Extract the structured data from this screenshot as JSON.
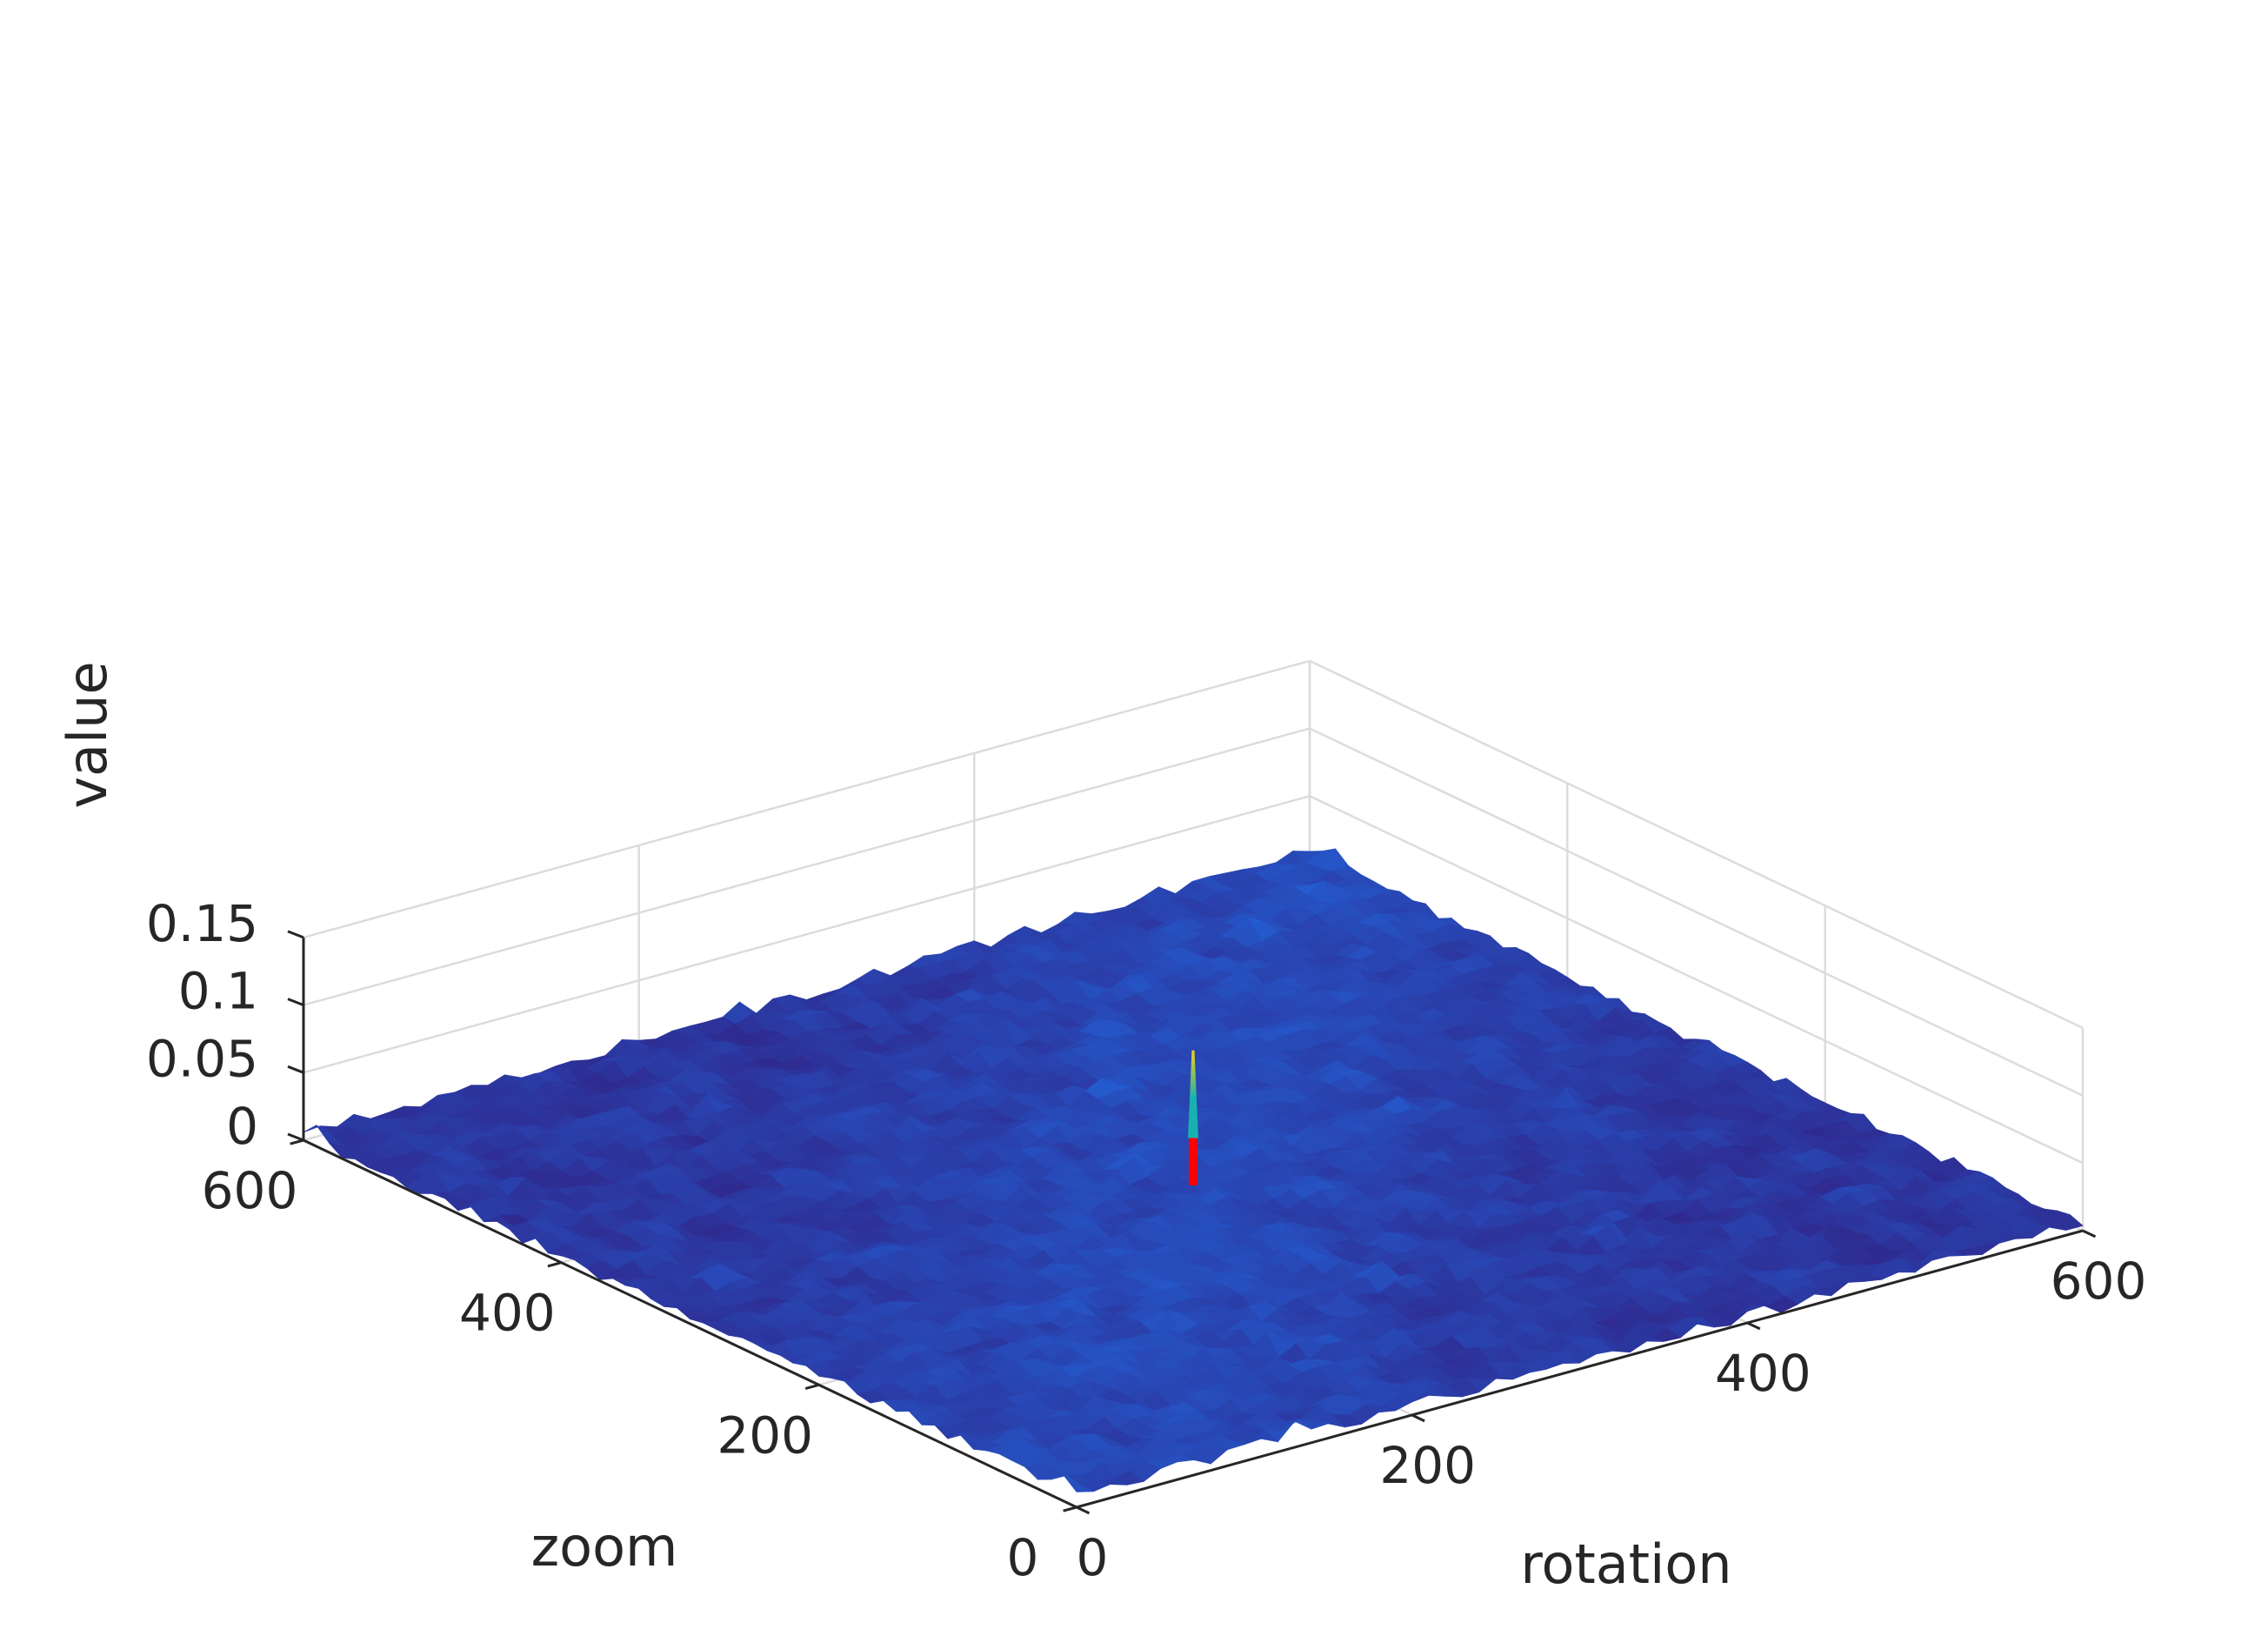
{
  "chart_data": {
    "type": "surface",
    "title": "",
    "xlabel": "rotation",
    "ylabel": "zoom",
    "zlabel": "value",
    "xlim": [
      0,
      600
    ],
    "ylim": [
      0,
      600
    ],
    "zlim": [
      0,
      0.15
    ],
    "x_ticks": [
      "0",
      "200",
      "400",
      "600"
    ],
    "y_ticks": [
      "0",
      "200",
      "400",
      "600"
    ],
    "z_ticks": [
      "0",
      "0.05",
      "0.1",
      "0.15"
    ],
    "grid": true,
    "colormap": "parula",
    "noise_floor": {
      "min": 0.0,
      "max": 0.02,
      "typical": 0.01
    },
    "peak": {
      "rotation": 300,
      "zoom": 300,
      "value": 0.1
    },
    "peak_marker": {
      "rotation": 300,
      "zoom": 300,
      "z_from": 0.0,
      "z_to": 0.035,
      "color": "#ff0000"
    },
    "colors": {
      "low": "#2f2a8f",
      "mid": "#1f6fe8",
      "teal": "#17b1b0",
      "high": "#f2d21c",
      "marker": "#ff0000"
    }
  }
}
